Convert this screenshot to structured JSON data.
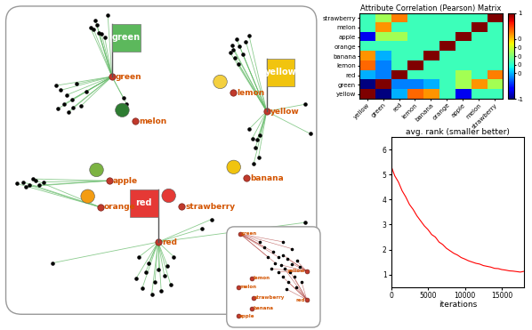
{
  "chart_data": [
    {
      "type": "network",
      "tick_labels": false,
      "xlim": [
        0,
        100
      ],
      "ylim": [
        0,
        100
      ],
      "nodes": [
        {
          "label": "green",
          "x": 34.3,
          "y": 76.9
        },
        {
          "label": "melon",
          "x": 41.6,
          "y": 62.6
        },
        {
          "label": "lemon",
          "x": 72.8,
          "y": 71.7
        },
        {
          "label": "yellow",
          "x": 83.6,
          "y": 65.7
        },
        {
          "label": "banana",
          "x": 77.1,
          "y": 44.3
        },
        {
          "label": "apple",
          "x": 33.4,
          "y": 43.4
        },
        {
          "label": "orange",
          "x": 30.6,
          "y": 34.9
        },
        {
          "label": "strawberry",
          "x": 56.4,
          "y": 35.1
        },
        {
          "label": "red",
          "x": 49.0,
          "y": 23.7
        }
      ],
      "flags": [
        {
          "text": "green",
          "color": "#5cb85c"
        },
        {
          "text": "yellow",
          "color": "#f1c40f"
        },
        {
          "text": "red",
          "color": "#e53935"
        }
      ],
      "points": [
        {
          "node": "green",
          "points": [
            [
              28.5,
              92
            ],
            [
              29.5,
              93.5
            ],
            [
              30,
              91
            ],
            [
              31,
              90.5
            ],
            [
              29,
              95
            ],
            [
              32,
              89.5
            ],
            [
              27.5,
              92.5
            ],
            [
              33,
              96.5
            ],
            [
              16.5,
              74
            ],
            [
              18,
              72.5
            ],
            [
              20,
              71
            ],
            [
              21.5,
              69.5
            ],
            [
              19,
              68
            ],
            [
              22,
              67
            ],
            [
              24.5,
              67.5
            ],
            [
              20.5,
              65.5
            ],
            [
              17,
              66.5
            ],
            [
              26,
              72
            ],
            [
              23,
              74.5
            ],
            [
              39,
              68
            ],
            [
              38,
              70
            ]
          ]
        },
        {
          "node": "yellow",
          "points": [
            [
              72.5,
              87
            ],
            [
              73,
              85.5
            ],
            [
              74,
              89
            ],
            [
              73.5,
              83
            ],
            [
              75,
              86.5
            ],
            [
              76,
              84
            ],
            [
              74.5,
              81
            ],
            [
              77,
              88
            ],
            [
              72,
              84.5
            ],
            [
              78,
              90
            ],
            [
              79,
              57
            ],
            [
              80,
              54
            ],
            [
              81,
              51
            ],
            [
              79.5,
              49
            ],
            [
              81.5,
              58
            ],
            [
              78,
              60
            ],
            [
              80.5,
              56.5
            ],
            [
              97.5,
              58.5
            ],
            [
              96,
              68
            ]
          ]
        },
        {
          "node": "orange",
          "points": [
            [
              4,
              42.5
            ],
            [
              6,
              43
            ],
            [
              8,
              42
            ],
            [
              10,
              43.5
            ]
          ]
        },
        {
          "node": "apple",
          "points": [
            [
              11,
              42
            ],
            [
              12.5,
              43
            ],
            [
              7,
              41.5
            ],
            [
              9,
              44
            ]
          ]
        },
        {
          "node": "red",
          "points": [
            [
              42,
              12
            ],
            [
              44,
              9
            ],
            [
              45,
              14
            ],
            [
              47,
              7
            ],
            [
              48,
              11
            ],
            [
              50,
              8
            ],
            [
              51,
              13
            ],
            [
              52,
              16
            ],
            [
              53,
              10
            ],
            [
              46,
              17
            ],
            [
              49,
              15
            ],
            [
              54,
              19
            ],
            [
              43,
              19
            ],
            [
              15.5,
              17
            ],
            [
              96,
              30
            ],
            [
              63,
              28
            ],
            [
              66,
              31
            ]
          ]
        }
      ]
    },
    {
      "type": "heatmap",
      "title": "Attribute Correlation (Pearson) Matrix",
      "rows": [
        "strawberry",
        "melon",
        "apple",
        "orange",
        "banana",
        "lemon",
        "red",
        "green",
        "yellow"
      ],
      "columns": [
        "yellow",
        "green",
        "red",
        "lemon",
        "banana",
        "orange",
        "apple",
        "melon",
        "strawberry"
      ],
      "cells": [
        [
          -0.15,
          0.1,
          0.55,
          -0.15,
          -0.15,
          -0.15,
          -0.15,
          -0.15,
          1
        ],
        [
          -0.15,
          0.5,
          -0.15,
          -0.15,
          -0.15,
          -0.15,
          -0.15,
          1,
          -0.15
        ],
        [
          -0.8,
          0.1,
          0.1,
          -0.15,
          -0.15,
          -0.15,
          1,
          -0.15,
          -0.15
        ],
        [
          -0.15,
          -0.15,
          -0.15,
          -0.15,
          -0.15,
          1,
          -0.15,
          -0.15,
          -0.15
        ],
        [
          0.5,
          -0.4,
          -0.15,
          -0.15,
          1,
          -0.15,
          -0.15,
          -0.15,
          -0.15
        ],
        [
          0.6,
          -0.5,
          -0.15,
          1,
          -0.15,
          -0.15,
          -0.15,
          -0.15,
          -0.15
        ],
        [
          -0.4,
          -0.5,
          1,
          -0.15,
          -0.15,
          -0.15,
          0.1,
          -0.15,
          0.55
        ],
        [
          -1,
          1,
          -0.5,
          -0.5,
          -0.4,
          -0.15,
          0.1,
          0.5,
          0.1
        ],
        [
          1,
          -1,
          -0.4,
          0.6,
          0.5,
          -0.15,
          -0.8,
          -0.15,
          -0.15
        ]
      ],
      "colorbar": {
        "range": [
          -1,
          1
        ],
        "ticks": [
          1,
          {
            "value": 0.4,
            "label": "0"
          },
          {
            "value": 0.2,
            "label": "0"
          },
          0,
          {
            "value": -0.2,
            "label": "0"
          },
          {
            "value": -0.4,
            "label": "0"
          },
          -1
        ]
      }
    },
    {
      "type": "line",
      "title": "avg. rank (smaller better)",
      "x_label": "iterations",
      "color": "red",
      "x": [
        0,
        500,
        1000,
        1500,
        2000,
        2500,
        3000,
        3500,
        4000,
        4500,
        5000,
        5500,
        6000,
        6500,
        7000,
        7500,
        8000,
        8500,
        9000,
        9500,
        10000,
        10500,
        11000,
        11500,
        12000,
        12500,
        13000,
        13500,
        14000,
        14500,
        15000,
        15500,
        16000,
        16500,
        17000,
        17500,
        18000
      ],
      "values": [
        5.35,
        4.95,
        4.7,
        4.35,
        4.1,
        3.8,
        3.6,
        3.35,
        3.15,
        2.95,
        2.8,
        2.6,
        2.5,
        2.3,
        2.2,
        2.05,
        1.95,
        1.85,
        1.78,
        1.68,
        1.62,
        1.55,
        1.5,
        1.45,
        1.42,
        1.36,
        1.33,
        1.3,
        1.25,
        1.24,
        1.2,
        1.18,
        1.15,
        1.14,
        1.12,
        1.1,
        1.13
      ],
      "xlim": [
        0,
        18000
      ],
      "ylim": [
        0.5,
        6.5
      ],
      "xticks": [
        0,
        5000,
        10000,
        15000
      ],
      "yticks": [
        1,
        2,
        3,
        4,
        5,
        6
      ]
    },
    {
      "type": "network",
      "tick_labels": false,
      "xlim": [
        0,
        100
      ],
      "ylim": [
        0,
        100
      ],
      "nodes": [
        {
          "label": "green",
          "x": 14.3,
          "y": 92.9
        },
        {
          "label": "yellow",
          "x": 85.7,
          "y": 55.8
        },
        {
          "label": "red",
          "x": 85.7,
          "y": 27.4
        },
        {
          "label": "lemon",
          "x": 26.7,
          "y": 48.7
        },
        {
          "label": "melon",
          "x": 12.4,
          "y": 39.8
        },
        {
          "label": "strawberry",
          "x": 28.6,
          "y": 29.2
        },
        {
          "label": "banana",
          "x": 26.7,
          "y": 18.6
        },
        {
          "label": "apple",
          "x": 12.4,
          "y": 11.5
        }
      ],
      "points": [
        {
          "node": "green",
          "points": [
            [
              50,
              75
            ],
            [
              55,
              70
            ],
            [
              44,
              70
            ],
            [
              40,
              80
            ],
            [
              35,
              85
            ],
            [
              60,
              85
            ],
            [
              70,
              78
            ],
            [
              52,
              64
            ]
          ]
        },
        {
          "node": "yellow",
          "points": [
            [
              60,
              72
            ],
            [
              65,
              68
            ],
            [
              58,
              62
            ],
            [
              70,
              63
            ],
            [
              75,
              66
            ],
            [
              78,
              60
            ],
            [
              55,
              55
            ],
            [
              48,
              58
            ]
          ]
        },
        {
          "node": "red",
          "points": [
            [
              62,
              58
            ],
            [
              68,
              55
            ],
            [
              72,
              50
            ],
            [
              66,
              45
            ],
            [
              60,
              50
            ],
            [
              74,
              40
            ],
            [
              64,
              38
            ],
            [
              80,
              45
            ]
          ]
        }
      ]
    }
  ]
}
